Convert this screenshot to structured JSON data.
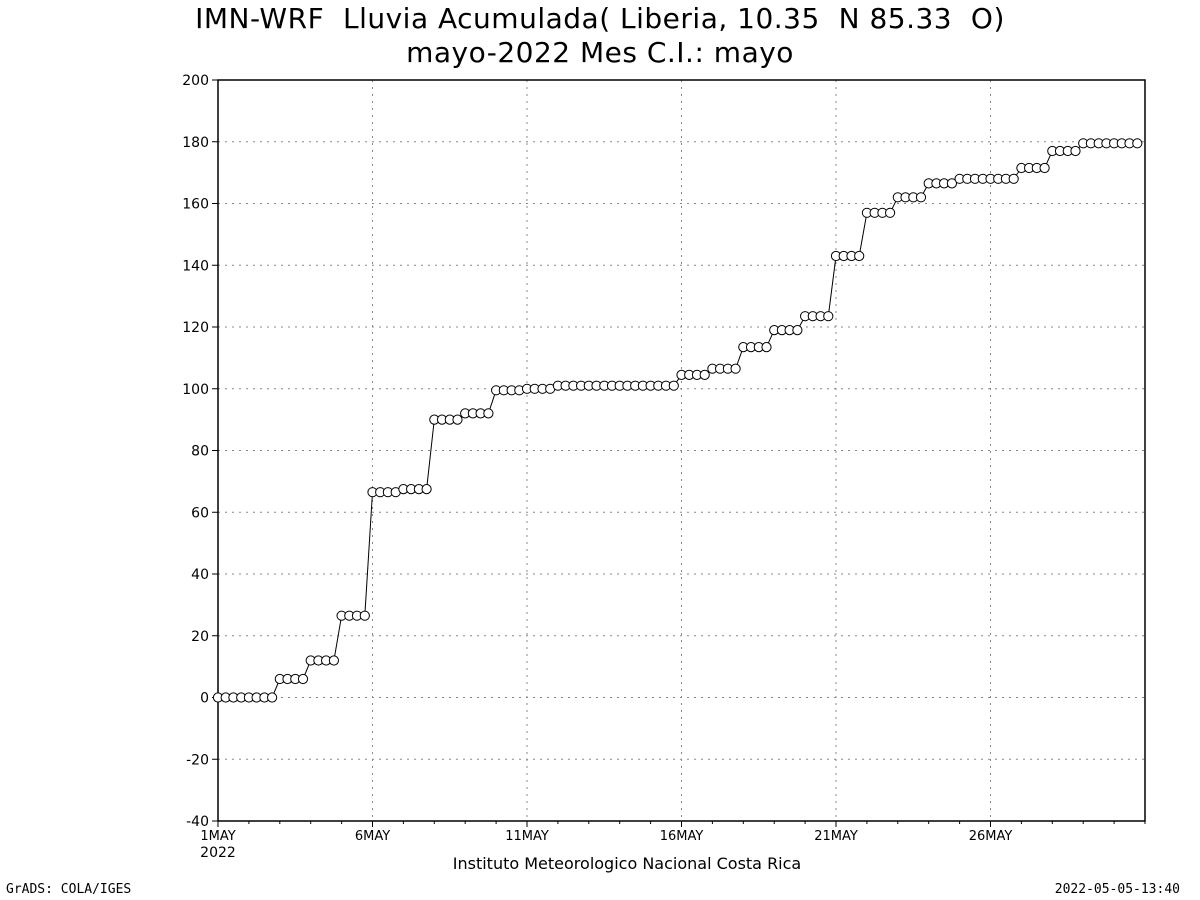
{
  "chart_data": {
    "type": "line",
    "title": "IMN-WRF  Lluvia Acumulada( Liberia, 10.35  N 85.33  O)",
    "subtitle": "mayo-2022 Mes C.I.: mayo",
    "xlabel": "Instituto Meteorologico Nacional Costa Rica",
    "ylabel": "",
    "x_start": "2022-05-01T00:00",
    "x_step_hours": 6,
    "xlim": [
      "2022-05-01T00:00",
      "2022-05-31T00:00"
    ],
    "ylim": [
      -40,
      200
    ],
    "yticks": [
      -40,
      -20,
      0,
      20,
      40,
      60,
      80,
      100,
      120,
      140,
      160,
      180,
      200
    ],
    "xticks": [
      {
        "date": "2022-05-01",
        "label": "1MAY",
        "sublabel": "2022"
      },
      {
        "date": "2022-05-06",
        "label": "6MAY",
        "sublabel": ""
      },
      {
        "date": "2022-05-11",
        "label": "11MAY",
        "sublabel": ""
      },
      {
        "date": "2022-05-16",
        "label": "16MAY",
        "sublabel": ""
      },
      {
        "date": "2022-05-21",
        "label": "21MAY",
        "sublabel": ""
      },
      {
        "date": "2022-05-26",
        "label": "26MAY",
        "sublabel": ""
      }
    ],
    "grid": true,
    "series": [
      {
        "marker": "open-circle",
        "color": "#000000",
        "values": [
          0,
          0,
          0,
          0,
          0,
          0,
          0,
          0,
          6,
          6,
          6,
          6,
          12,
          12,
          12,
          12,
          26.5,
          26.5,
          26.5,
          26.5,
          66.5,
          66.5,
          66.5,
          66.5,
          67.5,
          67.5,
          67.5,
          67.5,
          90,
          90,
          90,
          90,
          92,
          92,
          92,
          92,
          99.5,
          99.5,
          99.5,
          99.5,
          100,
          100,
          100,
          100,
          101,
          101,
          101,
          101,
          101,
          101,
          101,
          101,
          101,
          101,
          101,
          101,
          101,
          101,
          101,
          101,
          104.5,
          104.5,
          104.5,
          104.5,
          106.5,
          106.5,
          106.5,
          106.5,
          113.5,
          113.5,
          113.5,
          113.5,
          119,
          119,
          119,
          119,
          123.5,
          123.5,
          123.5,
          123.5,
          143,
          143,
          143,
          143,
          157,
          157,
          157,
          157,
          162,
          162,
          162,
          162,
          166.5,
          166.5,
          166.5,
          166.5,
          168,
          168,
          168,
          168,
          168,
          168,
          168,
          168,
          171.5,
          171.5,
          171.5,
          171.5,
          177,
          177,
          177,
          177,
          179.5,
          179.5,
          179.5,
          179.5,
          179.5,
          179.5,
          179.5,
          179.5
        ]
      }
    ]
  },
  "footer": {
    "left": "GrADS: COLA/IGES",
    "right": "2022-05-05-13:40"
  }
}
